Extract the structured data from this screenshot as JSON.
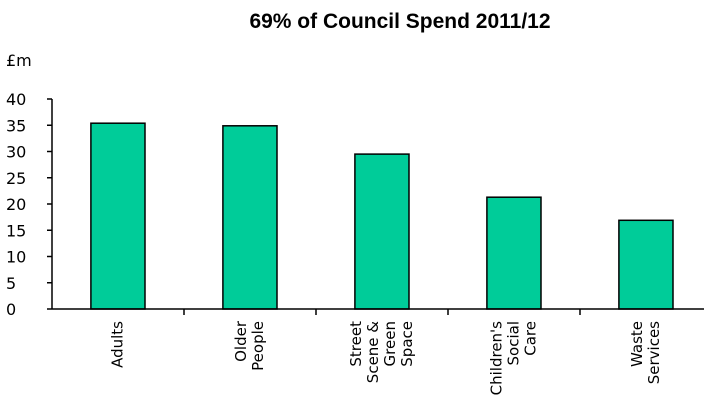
{
  "chart_data": {
    "type": "bar",
    "title": "69% of Council Spend 2011/12",
    "ylabel": "£m",
    "xlabel": "",
    "ylim": [
      0,
      40
    ],
    "yticks": [
      0,
      5,
      10,
      15,
      20,
      25,
      30,
      35,
      40
    ],
    "grid": false,
    "legend": "none",
    "bar_color": "#00cc99",
    "categories": [
      [
        "Adults"
      ],
      [
        "Older",
        "People"
      ],
      [
        "Street",
        "Scene &",
        "Green",
        "Space"
      ],
      [
        "Children's",
        "Social",
        "Care"
      ],
      [
        "Waste",
        "Services"
      ]
    ],
    "values": [
      35.4,
      34.9,
      29.5,
      21.3,
      16.9
    ]
  }
}
